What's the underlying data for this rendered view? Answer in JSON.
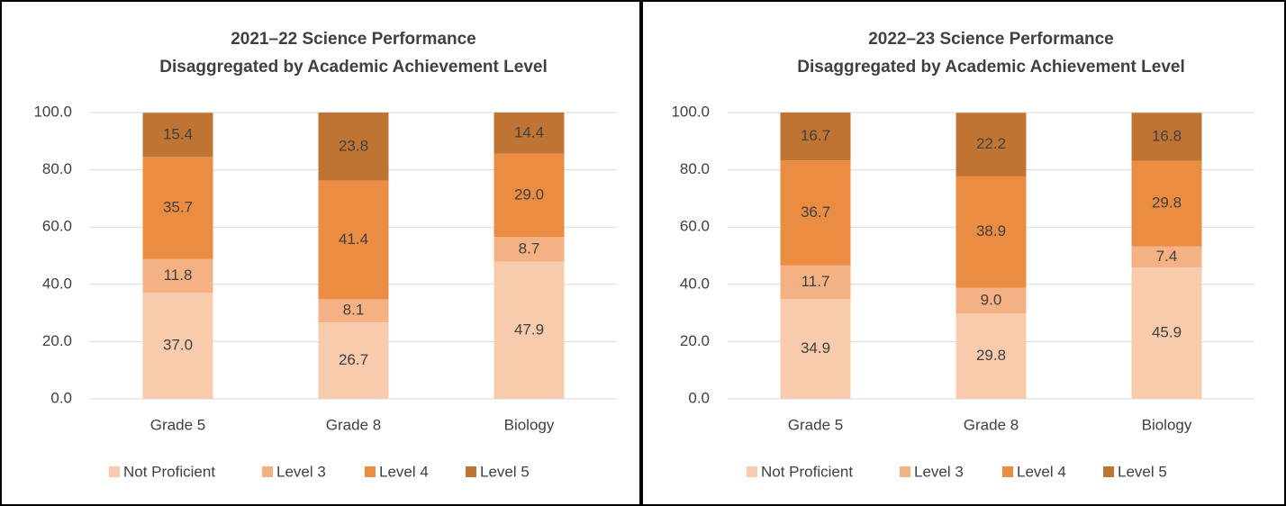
{
  "chart_data": [
    {
      "type": "stacked_bar",
      "title": [
        "2021–22 Science Performance",
        "Disaggregated by Academic Achievement Level"
      ],
      "categories": [
        "Grade 5",
        "Grade 8",
        "Biology"
      ],
      "series": [
        {
          "name": "Not Proficient",
          "color": "#f8cbad",
          "values": [
            37.0,
            26.7,
            47.9
          ],
          "value_labels": [
            "37.0",
            "26.7",
            "47.9"
          ]
        },
        {
          "name": "Level 3",
          "color": "#f4b183",
          "values": [
            11.8,
            8.1,
            8.7
          ],
          "value_labels": [
            "11.8",
            "8.1",
            "8.7"
          ]
        },
        {
          "name": "Level 4",
          "color": "#ea8c42",
          "values": [
            35.7,
            41.4,
            29.0
          ],
          "value_labels": [
            "35.7",
            "41.4",
            "29.0"
          ]
        },
        {
          "name": "Level 5",
          "color": "#c07434",
          "values": [
            15.4,
            23.8,
            14.4
          ],
          "value_labels": [
            "15.4",
            "23.8",
            "14.4"
          ]
        }
      ],
      "ylim": [
        0,
        100
      ],
      "yticks": [
        {
          "value": 0,
          "label": "0.0"
        },
        {
          "value": 20,
          "label": "20.0"
        },
        {
          "value": 40,
          "label": "40.0"
        },
        {
          "value": 60,
          "label": "60.0"
        },
        {
          "value": 80,
          "label": "80.0"
        },
        {
          "value": 100,
          "label": "100.0"
        }
      ],
      "grid": true,
      "legend": "bottom"
    },
    {
      "type": "stacked_bar",
      "title": [
        "2022–23 Science Performance",
        "Disaggregated by Academic Achievement Level"
      ],
      "categories": [
        "Grade 5",
        "Grade 8",
        "Biology"
      ],
      "series": [
        {
          "name": "Not Proficient",
          "color": "#f8cbad",
          "values": [
            34.9,
            29.8,
            45.9
          ],
          "value_labels": [
            "34.9",
            "29.8",
            "45.9"
          ]
        },
        {
          "name": "Level 3",
          "color": "#f4b183",
          "values": [
            11.7,
            9.0,
            7.4
          ],
          "value_labels": [
            "11.7",
            "9.0",
            "7.4"
          ]
        },
        {
          "name": "Level 4",
          "color": "#ea8c42",
          "values": [
            36.7,
            38.9,
            29.8
          ],
          "value_labels": [
            "36.7",
            "38.9",
            "29.8"
          ]
        },
        {
          "name": "Level 5",
          "color": "#c07434",
          "values": [
            16.7,
            22.2,
            16.8
          ],
          "value_labels": [
            "16.7",
            "22.2",
            "16.8"
          ]
        }
      ],
      "ylim": [
        0,
        100
      ],
      "yticks": [
        {
          "value": 0,
          "label": "0.0"
        },
        {
          "value": 20,
          "label": "20.0"
        },
        {
          "value": 40,
          "label": "40.0"
        },
        {
          "value": 60,
          "label": "60.0"
        },
        {
          "value": 80,
          "label": "80.0"
        },
        {
          "value": 100,
          "label": "100.0"
        }
      ],
      "grid": true,
      "legend": "bottom"
    }
  ]
}
